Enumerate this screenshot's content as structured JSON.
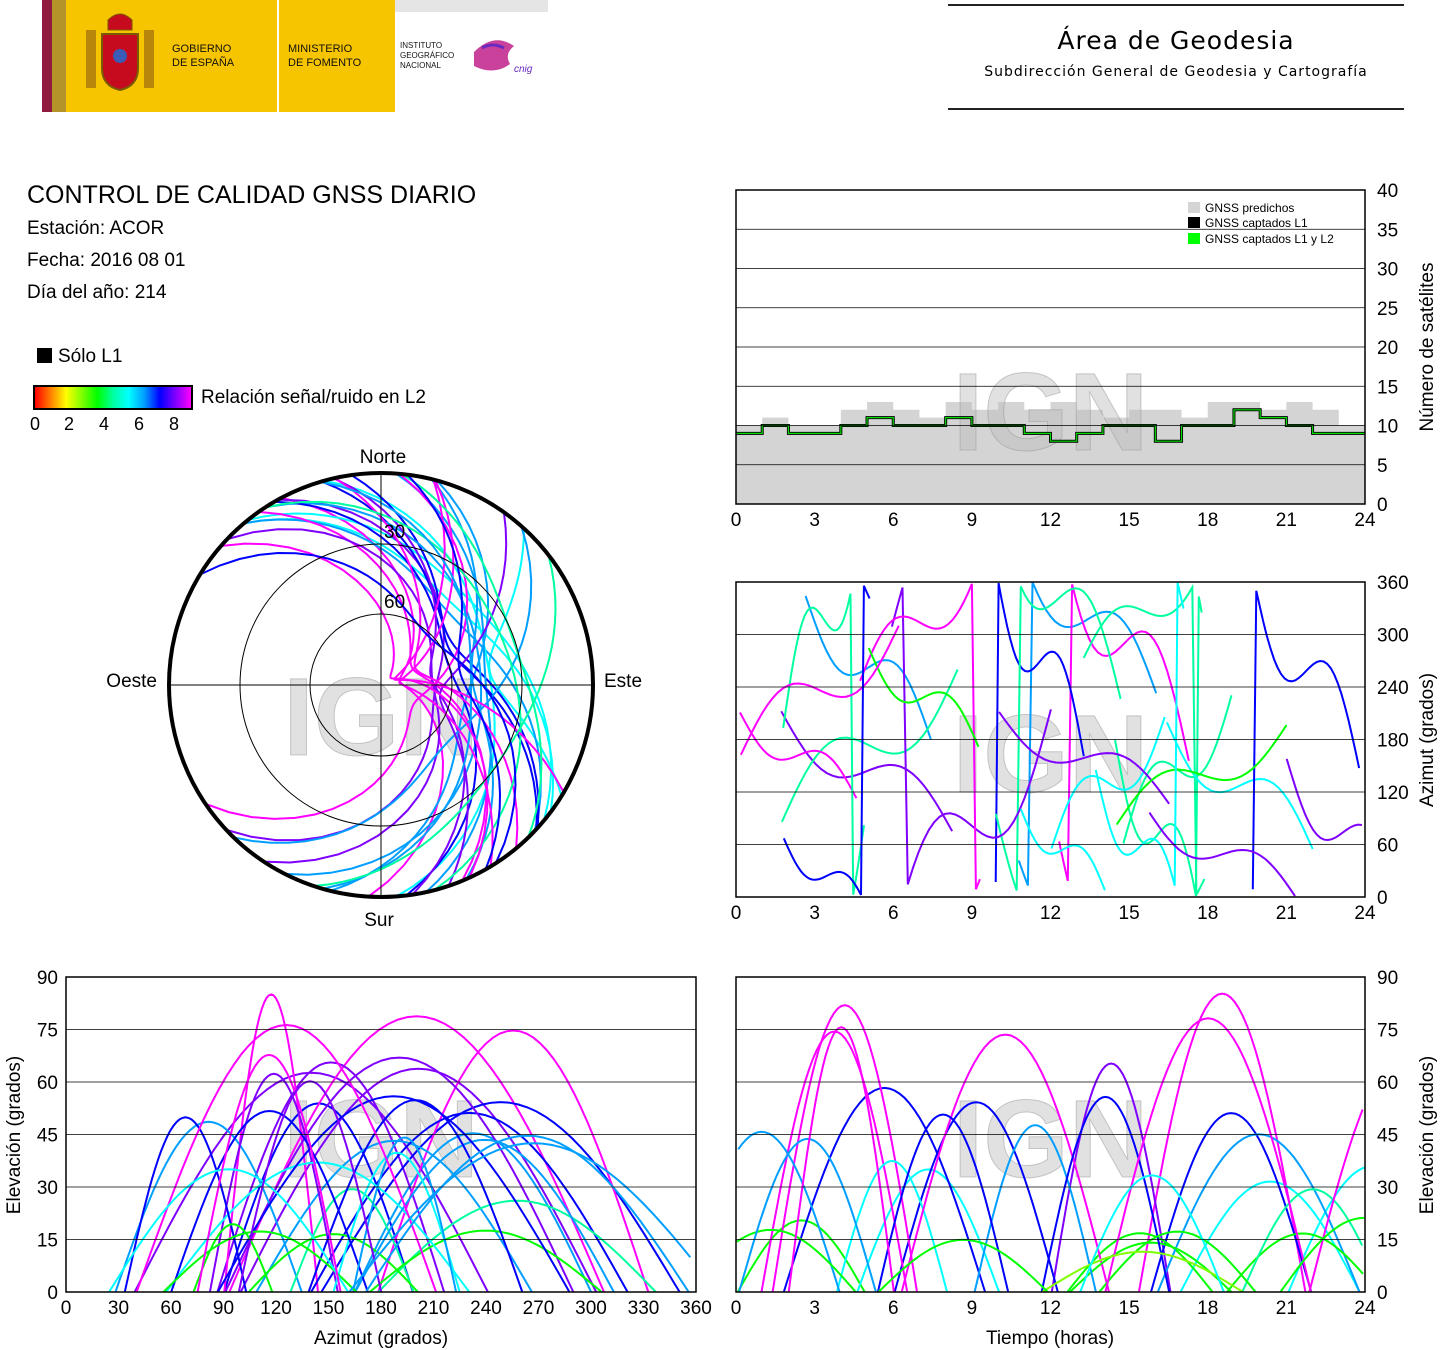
{
  "header": {
    "gobierno": "GOBIERNO DE ESPAÑA",
    "gobierno_l1": "GOBIERNO",
    "gobierno_l2": "DE ESPAÑA",
    "ministerio_l1": "MINISTERIO",
    "ministerio_l2": "DE FOMENTO",
    "instituto_l1": "INSTITUTO",
    "instituto_l2": "GEOGRÁFICO",
    "instituto_l3": "NACIONAL",
    "cnig": "cnig",
    "area_title": "Área de Geodesia",
    "area_subtitle": "Subdirección General de Geodesia y Cartografía"
  },
  "report": {
    "title": "CONTROL DE CALIDAD GNSS DIARIO",
    "station": "Estación: ACOR",
    "date": "Fecha: 2016 08 01",
    "doy": "Día del año: 214",
    "legend_l1": "Sólo L1",
    "legend_snr": "Relación señal/ruido en L2",
    "snr_ticks": [
      "0",
      "2",
      "4",
      "6",
      "8"
    ],
    "watermark": "IGN"
  },
  "chart_data": [
    {
      "type": "scatter",
      "subtype": "polar-skyplot",
      "cardinal_labels": {
        "north": "Norte",
        "south": "Sur",
        "east": "Este",
        "west": "Oeste"
      },
      "elevation_rings": [
        "30",
        "60"
      ],
      "color_scale": "SNR L2 0-8, rainbow red→magenta",
      "series_description": "satellite tracks"
    },
    {
      "type": "area",
      "ylabel": "Número de satélites",
      "ylim": [
        0,
        40
      ],
      "yticks": [
        "0",
        "5",
        "10",
        "15",
        "20",
        "25",
        "30",
        "35",
        "40"
      ],
      "xlim": [
        0,
        24
      ],
      "xticks": [
        "0",
        "3",
        "6",
        "9",
        "12",
        "15",
        "18",
        "21",
        "24"
      ],
      "legend": [
        "GNSS predichos",
        "GNSS captados L1",
        "GNSS captados L1 y L2"
      ],
      "legend_colors": [
        "#d4d4d4",
        "#000000",
        "#00ff00"
      ],
      "legend_position": "top-right",
      "series": [
        {
          "name": "GNSS predichos",
          "x": [
            0,
            1,
            2,
            3,
            4,
            5,
            6,
            7,
            8,
            9,
            10,
            11,
            12,
            13,
            14,
            15,
            16,
            17,
            18,
            19,
            20,
            21,
            22,
            23,
            24
          ],
          "values": [
            10,
            11,
            10,
            10,
            12,
            13,
            12,
            11,
            13,
            12,
            13,
            12,
            13,
            12,
            11,
            12,
            12,
            11,
            13,
            13,
            12,
            13,
            12,
            10,
            10
          ]
        },
        {
          "name": "GNSS captados L1 y L2",
          "x": [
            0,
            1,
            2,
            3,
            4,
            5,
            6,
            7,
            8,
            9,
            10,
            11,
            12,
            13,
            14,
            15,
            16,
            17,
            18,
            19,
            20,
            21,
            22,
            23,
            24
          ],
          "values": [
            9,
            10,
            9,
            9,
            10,
            11,
            10,
            10,
            11,
            10,
            10,
            9,
            8,
            9,
            10,
            10,
            8,
            10,
            10,
            12,
            11,
            10,
            9,
            9,
            9
          ]
        }
      ],
      "grid": true
    },
    {
      "type": "scatter",
      "ylabel": "Azimut (grados)",
      "ylim": [
        0,
        360
      ],
      "yticks": [
        "0",
        "60",
        "120",
        "180",
        "240",
        "300",
        "360"
      ],
      "xlim": [
        0,
        24
      ],
      "xticks": [
        "0",
        "3",
        "6",
        "9",
        "12",
        "15",
        "18",
        "21",
        "24"
      ],
      "grid": true
    },
    {
      "type": "scatter",
      "xlabel": "Azimut (grados)",
      "ylabel": "Elevación (grados)",
      "xlim": [
        0,
        360
      ],
      "ylim": [
        0,
        90
      ],
      "xticks": [
        "0",
        "30",
        "60",
        "90",
        "120",
        "150",
        "180",
        "210",
        "240",
        "270",
        "300",
        "330",
        "360"
      ],
      "yticks": [
        "0",
        "15",
        "30",
        "45",
        "60",
        "75",
        "90"
      ],
      "grid": true
    },
    {
      "type": "scatter",
      "xlabel": "Tiempo (horas)",
      "ylabel": "Elevación (grados)",
      "xlim": [
        0,
        24
      ],
      "ylim": [
        0,
        90
      ],
      "xticks": [
        "0",
        "3",
        "6",
        "9",
        "12",
        "15",
        "18",
        "21",
        "24"
      ],
      "yticks": [
        "0",
        "15",
        "30",
        "45",
        "60",
        "75",
        "90"
      ],
      "grid": true
    }
  ]
}
